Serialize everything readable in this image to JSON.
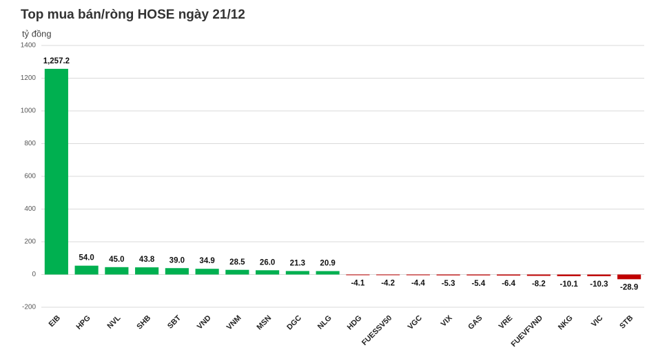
{
  "chart_data": {
    "type": "bar",
    "title": "Top mua bán/ròng HOSE ngày 21/12",
    "y_label": "tỷ đồng",
    "categories": [
      "EIB",
      "HPG",
      "NVL",
      "SHB",
      "SBT",
      "VND",
      "VNM",
      "MSN",
      "DGC",
      "NLG",
      "HDG",
      "FUESSV50",
      "VGC",
      "VIX",
      "GAS",
      "VRE",
      "FUEVFVND",
      "NKG",
      "VIC",
      "STB"
    ],
    "values": [
      1257.2,
      54.0,
      45.0,
      43.8,
      39.0,
      34.9,
      28.5,
      26.0,
      21.3,
      20.9,
      -4.1,
      -4.2,
      -4.4,
      -5.3,
      -5.4,
      -6.4,
      -8.2,
      -10.1,
      -10.3,
      -28.9
    ],
    "value_labels": [
      "1,257.2",
      "54.0",
      "45.0",
      "43.8",
      "39.0",
      "34.9",
      "28.5",
      "26.0",
      "21.3",
      "20.9",
      "-4.1",
      "-4.2",
      "-4.4",
      "-5.3",
      "-5.4",
      "-6.4",
      "-8.2",
      "-10.1",
      "-10.3",
      "-28.9"
    ],
    "positive_color": "#00b050",
    "negative_color": "#c00000",
    "ylim": [
      -200,
      1400
    ],
    "yticks": [
      -200,
      0,
      200,
      400,
      600,
      800,
      1000,
      1200,
      1400
    ],
    "grid": true
  }
}
